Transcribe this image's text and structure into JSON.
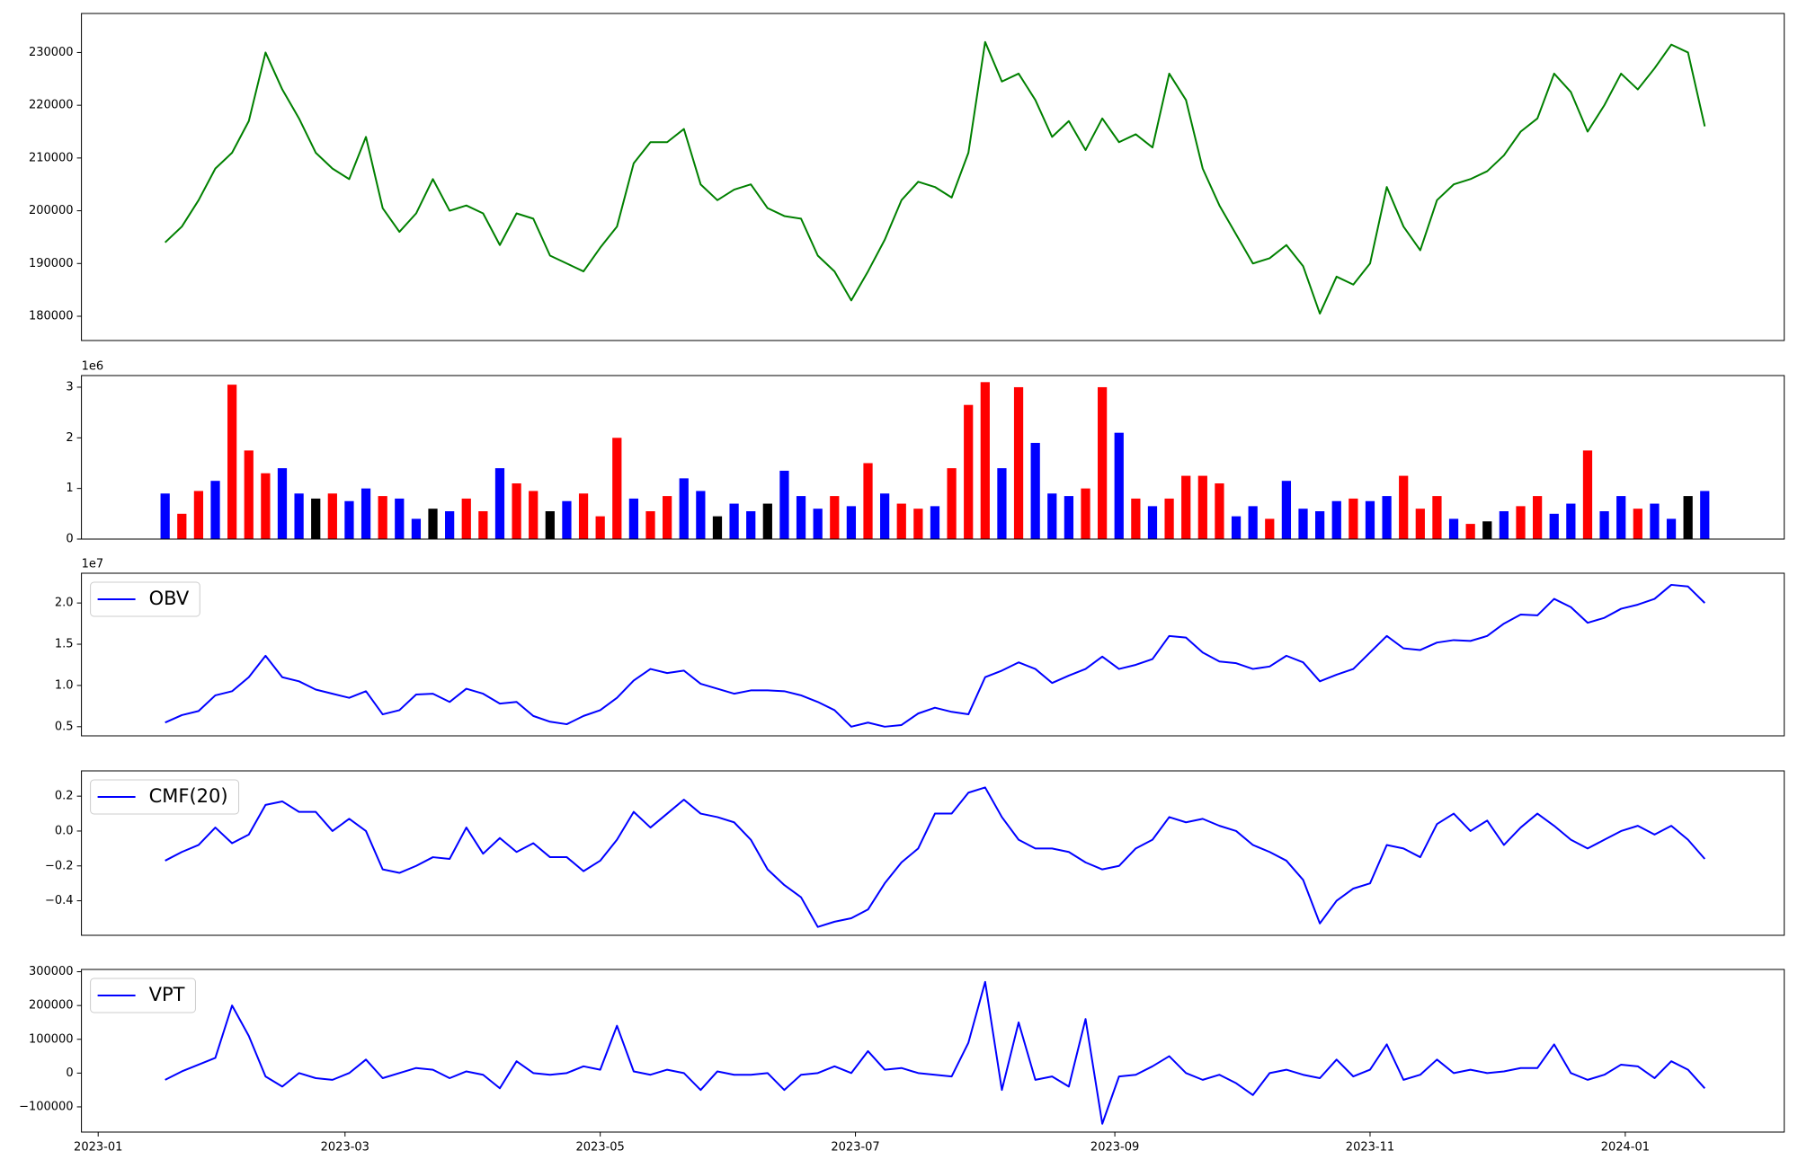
{
  "chart_data": {
    "type": "multi",
    "x": [
      "2023-01-17",
      "2023-01-21",
      "2023-01-25",
      "2023-01-29",
      "2023-02-02",
      "2023-02-06",
      "2023-02-10",
      "2023-02-14",
      "2023-02-18",
      "2023-02-22",
      "2023-02-26",
      "2023-03-02",
      "2023-03-06",
      "2023-03-10",
      "2023-03-14",
      "2023-03-18",
      "2023-03-22",
      "2023-03-26",
      "2023-03-30",
      "2023-04-03",
      "2023-04-07",
      "2023-04-11",
      "2023-04-15",
      "2023-04-19",
      "2023-04-23",
      "2023-04-27",
      "2023-05-01",
      "2023-05-05",
      "2023-05-09",
      "2023-05-13",
      "2023-05-17",
      "2023-05-21",
      "2023-05-25",
      "2023-05-29",
      "2023-06-02",
      "2023-06-06",
      "2023-06-10",
      "2023-06-14",
      "2023-06-18",
      "2023-06-22",
      "2023-06-26",
      "2023-06-30",
      "2023-07-04",
      "2023-07-08",
      "2023-07-12",
      "2023-07-16",
      "2023-07-20",
      "2023-07-24",
      "2023-07-28",
      "2023-08-01",
      "2023-08-05",
      "2023-08-09",
      "2023-08-13",
      "2023-08-17",
      "2023-08-21",
      "2023-08-25",
      "2023-08-29",
      "2023-09-02",
      "2023-09-06",
      "2023-09-10",
      "2023-09-14",
      "2023-09-18",
      "2023-09-22",
      "2023-09-26",
      "2023-09-30",
      "2023-10-04",
      "2023-10-08",
      "2023-10-12",
      "2023-10-16",
      "2023-10-20",
      "2023-10-24",
      "2023-10-28",
      "2023-11-01",
      "2023-11-05",
      "2023-11-09",
      "2023-11-13",
      "2023-11-17",
      "2023-11-21",
      "2023-11-25",
      "2023-11-29",
      "2023-12-03",
      "2023-12-07",
      "2023-12-11",
      "2023-12-15",
      "2023-12-19",
      "2023-12-23",
      "2023-12-27",
      "2023-12-31",
      "2024-01-04",
      "2024-01-08",
      "2024-01-12",
      "2024-01-16",
      "2024-01-20"
    ],
    "xlim": [
      "2022-12-28",
      "2024-02-08"
    ],
    "xticks": [
      {
        "value": "2023-01-01",
        "label": "2023-01"
      },
      {
        "value": "2023-03-01",
        "label": "2023-03"
      },
      {
        "value": "2023-05-01",
        "label": "2023-05"
      },
      {
        "value": "2023-07-01",
        "label": "2023-07"
      },
      {
        "value": "2023-09-01",
        "label": "2023-09"
      },
      {
        "value": "2023-11-01",
        "label": "2023-11"
      },
      {
        "value": "2024-01-01",
        "label": "2024-01"
      }
    ],
    "panels": [
      {
        "type": "line",
        "ylim": [
          175400,
          237400
        ],
        "yticks": [
          180000,
          190000,
          200000,
          210000,
          220000,
          230000
        ],
        "series": [
          {
            "color": "green",
            "values": [
              194000,
              197000,
              202000,
              208000,
              211000,
              217000,
              230000,
              223000,
              217500,
              211000,
              208000,
              206000,
              214000,
              200500,
              196000,
              199500,
              206000,
              200000,
              201000,
              199500,
              193500,
              199500,
              198500,
              191500,
              190000,
              188500,
              193000,
              197000,
              209000,
              213000,
              213000,
              215500,
              205000,
              202000,
              204000,
              205000,
              200500,
              199000,
              198500,
              191500,
              188500,
              183000,
              188500,
              194500,
              202000,
              205500,
              204500,
              202500,
              211000,
              232000,
              224500,
              226000,
              221000,
              214000,
              217000,
              211500,
              217500,
              213000,
              214500,
              212000,
              226000,
              221000,
              208000,
              201000,
              195500,
              190000,
              191000,
              193500,
              189500,
              180500,
              187500,
              186000,
              190000,
              204500,
              197000,
              192500,
              202000,
              205000,
              206000,
              207500,
              210500,
              215000,
              217500,
              226000,
              222500,
              215000,
              220000,
              226000,
              223000,
              227000,
              231500,
              230000,
              216000
            ]
          }
        ]
      },
      {
        "type": "bar",
        "ylim": [
          0,
          3230000
        ],
        "offset_label": "1e6",
        "yticks": [
          0,
          {
            "value": 1000000,
            "label": "1"
          },
          {
            "value": 2000000,
            "label": "2"
          },
          {
            "value": 3000000,
            "label": "3"
          }
        ],
        "values": [
          900000,
          500000,
          950000,
          1150000,
          3050000,
          1750000,
          1300000,
          1400000,
          900000,
          800000,
          900000,
          750000,
          1000000,
          850000,
          800000,
          400000,
          600000,
          550000,
          800000,
          550000,
          1400000,
          1100000,
          950000,
          550000,
          750000,
          900000,
          450000,
          2000000,
          800000,
          550000,
          850000,
          1200000,
          950000,
          450000,
          700000,
          550000,
          700000,
          1350000,
          850000,
          600000,
          850000,
          650000,
          1500000,
          900000,
          700000,
          600000,
          650000,
          1400000,
          2650000,
          3100000,
          1400000,
          3000000,
          1900000,
          900000,
          850000,
          1000000,
          3000000,
          2100000,
          800000,
          650000,
          800000,
          1250000,
          1250000,
          1100000,
          450000,
          650000,
          400000,
          1150000,
          600000,
          550000,
          750000,
          800000,
          750000,
          850000,
          1250000,
          600000,
          850000,
          400000,
          300000,
          350000,
          550000,
          650000,
          850000,
          500000,
          700000,
          1750000,
          550000,
          850000,
          600000,
          700000,
          400000,
          850000,
          950000
        ],
        "colors": [
          "blue",
          "red",
          "red",
          "blue",
          "red",
          "red",
          "red",
          "blue",
          "blue",
          "black",
          "red",
          "blue",
          "blue",
          "red",
          "blue",
          "blue",
          "black",
          "blue",
          "red",
          "red",
          "blue",
          "red",
          "red",
          "black",
          "blue",
          "red",
          "red",
          "red",
          "blue",
          "red",
          "red",
          "blue",
          "blue",
          "black",
          "blue",
          "blue",
          "black",
          "blue",
          "blue",
          "blue",
          "red",
          "blue",
          "red",
          "blue",
          "red",
          "red",
          "blue",
          "red",
          "red",
          "red",
          "blue",
          "red",
          "blue",
          "blue",
          "blue",
          "red",
          "red",
          "blue",
          "red",
          "blue",
          "red",
          "red",
          "red",
          "red",
          "blue",
          "blue",
          "red",
          "blue",
          "blue",
          "blue",
          "blue",
          "red",
          "blue",
          "blue",
          "red",
          "red",
          "red",
          "blue",
          "red",
          "black",
          "blue",
          "red",
          "red",
          "blue",
          "blue",
          "red",
          "blue",
          "blue",
          "red",
          "blue",
          "blue",
          "black",
          "blue"
        ]
      },
      {
        "type": "line",
        "ylim": [
          3890000,
          23610000
        ],
        "offset_label": "1e7",
        "legend": "upper left",
        "yticks": [
          {
            "value": 5000000,
            "label": "0.5"
          },
          {
            "value": 10000000,
            "label": "1.0"
          },
          {
            "value": 15000000,
            "label": "1.5"
          },
          {
            "value": 20000000,
            "label": "2.0"
          }
        ],
        "series": [
          {
            "name": "OBV",
            "color": "blue",
            "values": [
              5500000,
              6400000,
              6900000,
              8800000,
              9300000,
              11000000,
              13600000,
              11000000,
              10500000,
              9500000,
              9000000,
              8500000,
              9300000,
              6500000,
              7000000,
              8900000,
              9000000,
              8000000,
              9600000,
              9000000,
              7800000,
              8000000,
              6300000,
              5600000,
              5300000,
              6300000,
              7000000,
              8500000,
              10600000,
              12000000,
              11500000,
              11800000,
              10200000,
              9600000,
              9000000,
              9400000,
              9400000,
              9300000,
              8800000,
              8000000,
              7000000,
              5000000,
              5500000,
              5000000,
              5200000,
              6600000,
              7300000,
              6800000,
              6500000,
              11000000,
              11800000,
              12800000,
              12000000,
              10300000,
              11200000,
              12000000,
              13500000,
              12000000,
              12500000,
              13200000,
              16000000,
              15800000,
              14000000,
              12900000,
              12700000,
              12000000,
              12300000,
              13600000,
              12800000,
              10500000,
              11300000,
              12000000,
              14000000,
              16000000,
              14500000,
              14300000,
              15200000,
              15500000,
              15400000,
              16000000,
              17500000,
              18600000,
              18500000,
              20500000,
              19500000,
              17600000,
              18200000,
              19300000,
              19800000,
              20500000,
              22200000,
              22000000,
              20000000
            ]
          }
        ]
      },
      {
        "type": "line",
        "ylim": [
          -0.598,
          0.345
        ],
        "legend": "upper left",
        "yticks": [
          {
            "value": -0.4,
            "label": "−0.4"
          },
          {
            "value": -0.2,
            "label": "−0.2"
          },
          {
            "value": 0,
            "label": "0.0"
          },
          0.2
        ],
        "series": [
          {
            "name": "CMF(20)",
            "color": "blue",
            "values": [
              -0.17,
              -0.12,
              -0.08,
              0.02,
              -0.07,
              -0.02,
              0.15,
              0.17,
              0.11,
              0.11,
              0.0,
              0.07,
              0.0,
              -0.22,
              -0.24,
              -0.2,
              -0.15,
              -0.16,
              0.02,
              -0.13,
              -0.04,
              -0.12,
              -0.07,
              -0.15,
              -0.15,
              -0.23,
              -0.17,
              -0.05,
              0.11,
              0.02,
              0.1,
              0.18,
              0.1,
              0.08,
              0.05,
              -0.05,
              -0.22,
              -0.31,
              -0.38,
              -0.55,
              -0.52,
              -0.5,
              -0.45,
              -0.3,
              -0.18,
              -0.1,
              0.1,
              0.1,
              0.22,
              0.25,
              0.08,
              -0.05,
              -0.1,
              -0.1,
              -0.12,
              -0.18,
              -0.22,
              -0.2,
              -0.1,
              -0.05,
              0.08,
              0.05,
              0.07,
              0.03,
              0.0,
              -0.08,
              -0.12,
              -0.17,
              -0.28,
              -0.53,
              -0.4,
              -0.33,
              -0.3,
              -0.08,
              -0.1,
              -0.15,
              0.04,
              0.1,
              0.0,
              0.06,
              -0.08,
              0.02,
              0.1,
              0.03,
              -0.05,
              -0.1,
              -0.05,
              0.0,
              0.03,
              -0.02,
              0.03,
              -0.05,
              -0.16
            ]
          }
        ]
      },
      {
        "type": "line",
        "ylim": [
          -174600,
          306800
        ],
        "legend": "upper left",
        "yticks": [
          {
            "value": -100000,
            "label": "−100000"
          },
          0,
          100000,
          200000,
          300000
        ],
        "series": [
          {
            "name": "VPT",
            "color": "blue",
            "values": [
              -20000,
              5000,
              25000,
              45000,
              200000,
              110000,
              -10000,
              -40000,
              0,
              -15000,
              -20000,
              0,
              40000,
              -15000,
              0,
              15000,
              10000,
              -15000,
              5000,
              -5000,
              -45000,
              35000,
              0,
              -5000,
              0,
              20000,
              10000,
              140000,
              5000,
              -5000,
              10000,
              0,
              -50000,
              5000,
              -5000,
              -5000,
              0,
              -50000,
              -5000,
              0,
              20000,
              0,
              65000,
              10000,
              15000,
              0,
              -5000,
              -10000,
              90000,
              270000,
              -50000,
              150000,
              -20000,
              -10000,
              -40000,
              160000,
              -150000,
              -10000,
              -5000,
              20000,
              50000,
              0,
              -20000,
              -5000,
              -30000,
              -65000,
              0,
              10000,
              -5000,
              -15000,
              40000,
              -10000,
              10000,
              85000,
              -20000,
              -5000,
              40000,
              0,
              10000,
              0,
              5000,
              15000,
              15000,
              85000,
              0,
              -20000,
              -5000,
              25000,
              20000,
              -15000,
              35000,
              10000,
              -45000
            ]
          }
        ]
      }
    ]
  }
}
